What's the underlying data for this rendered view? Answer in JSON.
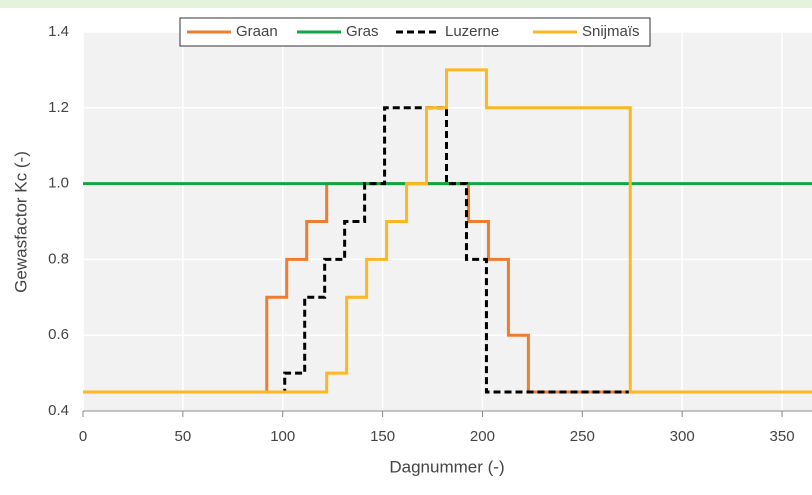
{
  "chart_data": {
    "type": "line",
    "xlabel": "Dagnummer (-)",
    "ylabel": "Gewasfactor Kc (-)",
    "xlim": [
      0,
      365
    ],
    "xticks": [
      0,
      50,
      100,
      150,
      200,
      250,
      300,
      350
    ],
    "ylim": [
      0.4,
      1.4
    ],
    "yticks": [
      0.4,
      0.6,
      0.8,
      {
        "value": 1,
        "label": "1.0"
      },
      1.2,
      1.4
    ],
    "grid": true,
    "legend": "top",
    "series": [
      {
        "name": "Graan",
        "color": "#ed7d31",
        "style": "solid",
        "x": [
          0,
          92,
          92,
          102,
          102,
          112,
          112,
          122,
          122,
          193,
          193,
          203,
          203,
          213,
          213,
          223,
          223,
          365
        ],
        "values": [
          0.45,
          0.45,
          0.7,
          0.7,
          0.8,
          0.8,
          0.9,
          0.9,
          1,
          1,
          0.9,
          0.9,
          0.8,
          0.8,
          0.6,
          0.6,
          0.45,
          0.45
        ]
      },
      {
        "name": "Gras",
        "color": "#13a44a",
        "style": "solid",
        "x": [
          0,
          365
        ],
        "values": [
          1,
          1
        ]
      },
      {
        "name": "Luzerne",
        "color": "#000000",
        "style": "dashed",
        "x": [
          0,
          101,
          101,
          111,
          111,
          121,
          121,
          131,
          131,
          141,
          141,
          151,
          151,
          182,
          182,
          192,
          192,
          202,
          202,
          365
        ],
        "values": [
          0.45,
          0.45,
          0.5,
          0.5,
          0.7,
          0.7,
          0.8,
          0.8,
          0.9,
          0.9,
          1,
          1,
          1.2,
          1.2,
          1,
          1,
          0.8,
          0.8,
          0.45,
          0.45
        ]
      },
      {
        "name": "Snijmaïs",
        "color": "#fbb823",
        "style": "solid",
        "x": [
          0,
          122,
          122,
          132,
          132,
          142,
          142,
          152,
          152,
          162,
          162,
          172,
          172,
          182,
          182,
          202,
          202,
          274,
          274,
          365
        ],
        "values": [
          0.45,
          0.45,
          0.5,
          0.5,
          0.7,
          0.7,
          0.8,
          0.8,
          0.9,
          0.9,
          1,
          1,
          1.2,
          1.2,
          1.3,
          1.3,
          1.2,
          1.2,
          0.45,
          0.45
        ]
      }
    ]
  }
}
